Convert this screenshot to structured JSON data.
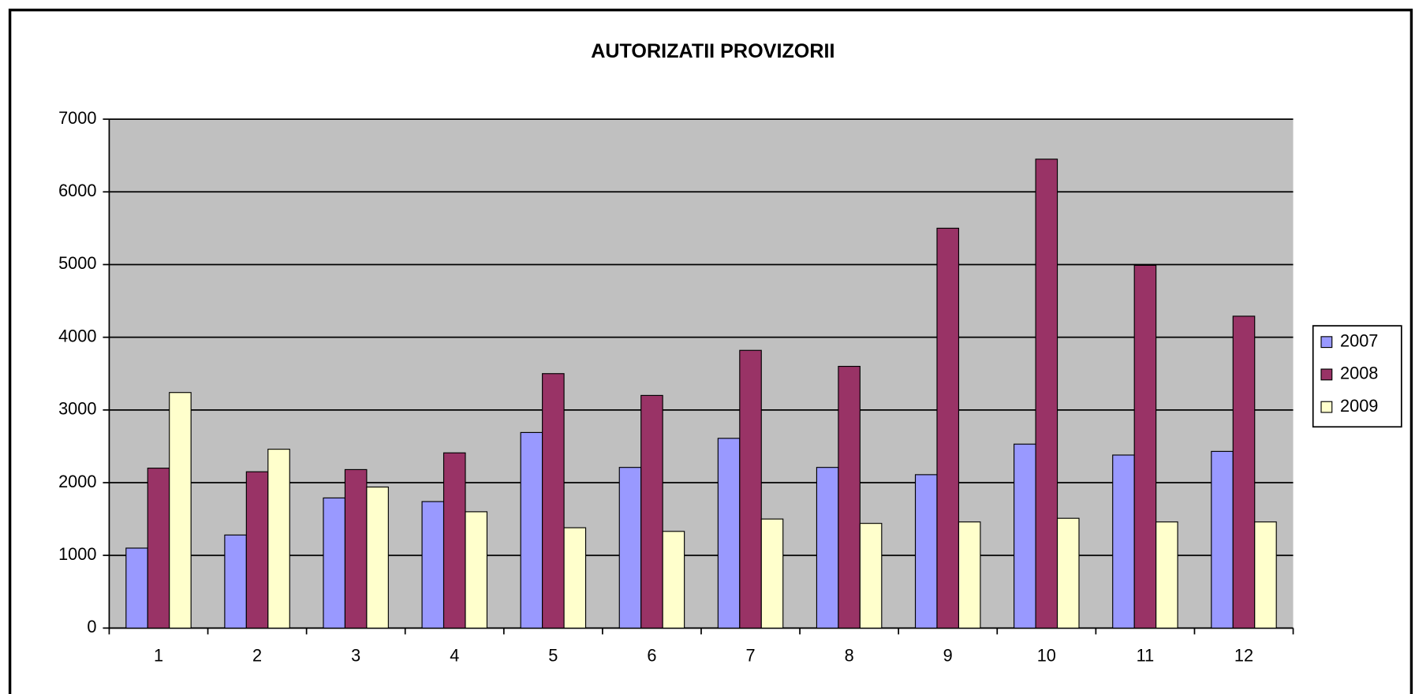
{
  "chart_data": {
    "type": "bar",
    "title": "AUTORIZATII PROVIZORII",
    "categories": [
      "1",
      "2",
      "3",
      "4",
      "5",
      "6",
      "7",
      "8",
      "9",
      "10",
      "11",
      "12"
    ],
    "series": [
      {
        "name": "2007",
        "color": "#9999ff",
        "values": [
          1100,
          1280,
          1790,
          1740,
          2690,
          2210,
          2610,
          2210,
          2110,
          2530,
          2380,
          2430
        ]
      },
      {
        "name": "2008",
        "color": "#993366",
        "values": [
          2200,
          2150,
          2180,
          2410,
          3500,
          3200,
          3820,
          3600,
          5500,
          6450,
          4990,
          4290
        ]
      },
      {
        "name": "2009",
        "color": "#ffffcc",
        "values": [
          3240,
          2460,
          1940,
          1600,
          1380,
          1330,
          1500,
          1440,
          1460,
          1510,
          1460,
          1460
        ]
      }
    ],
    "ylim": [
      0,
      7000
    ],
    "yticks": [
      0,
      1000,
      2000,
      3000,
      4000,
      5000,
      6000,
      7000
    ],
    "grid": true,
    "legend": "right",
    "plot_background": "#c0c0c0"
  }
}
